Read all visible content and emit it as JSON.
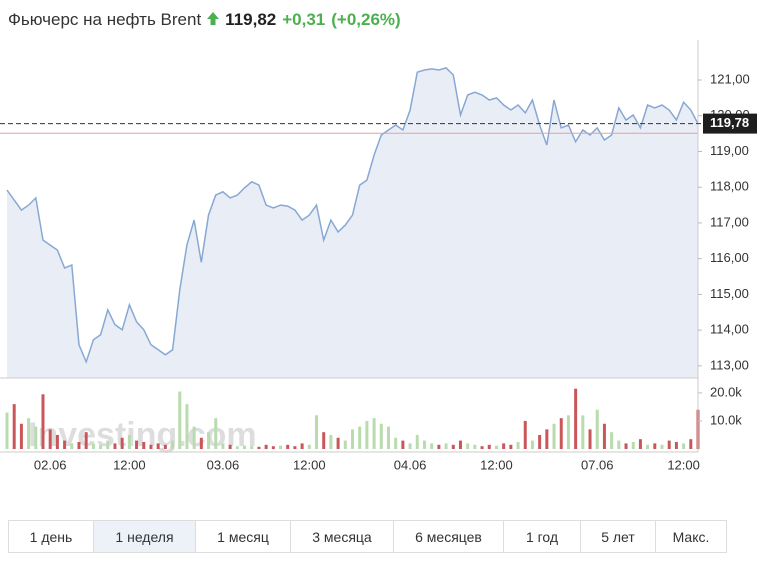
{
  "chart_data": {
    "type": "line",
    "title": "Фьючерс на нефть Brent",
    "price": "119,82",
    "change": "+0,31",
    "change_pct": "(+0,26%)",
    "watermark": "Investing.com",
    "categories": [
      null,
      null,
      null,
      null,
      null,
      null,
      "02.06",
      null,
      null,
      null,
      null,
      null,
      null,
      null,
      null,
      null,
      null,
      "12:00",
      null,
      null,
      null,
      null,
      null,
      null,
      null,
      null,
      null,
      null,
      null,
      null,
      "03.06",
      null,
      null,
      null,
      null,
      null,
      null,
      null,
      null,
      null,
      null,
      null,
      "12:00",
      null,
      null,
      null,
      null,
      null,
      null,
      null,
      null,
      null,
      null,
      null,
      null,
      null,
      "04.06",
      null,
      null,
      null,
      null,
      null,
      null,
      null,
      null,
      null,
      null,
      null,
      "12:00",
      null,
      null,
      null,
      null,
      null,
      null,
      null,
      null,
      null,
      null,
      null,
      null,
      null,
      "07.06",
      null,
      null,
      null,
      null,
      null,
      null,
      null,
      null,
      null,
      null,
      null,
      "12:00",
      null,
      null
    ],
    "series": [
      {
        "color": "#88a8d4",
        "fill": "#e9edf6",
        "values": [
          117.92,
          117.64,
          117.36,
          117.5,
          117.7,
          116.52,
          116.38,
          116.24,
          115.74,
          115.82,
          113.59,
          113.11,
          113.73,
          113.87,
          114.57,
          114.15,
          114.01,
          114.71,
          114.23,
          114.01,
          113.59,
          113.45,
          113.31,
          113.45,
          115.13,
          116.38,
          117.08,
          115.9,
          117.22,
          117.78,
          117.87,
          117.7,
          117.78,
          117.98,
          118.15,
          118.06,
          117.5,
          117.42,
          117.5,
          117.47,
          117.36,
          117.08,
          117.22,
          117.5,
          116.52,
          117.08,
          116.75,
          116.94,
          117.22,
          118.06,
          118.2,
          118.9,
          119.46,
          119.6,
          119.74,
          119.6,
          120.16,
          121.22,
          121.28,
          121.31,
          121.28,
          121.34,
          121.14,
          120.02,
          120.58,
          120.66,
          120.58,
          120.44,
          120.5,
          120.3,
          120.16,
          120.3,
          120.08,
          120.44,
          119.74,
          119.18,
          120.44,
          119.66,
          119.74,
          119.27,
          119.6,
          119.46,
          119.66,
          119.32,
          119.46,
          120.22,
          119.88,
          120.02,
          119.66,
          120.3,
          120.22,
          120.3,
          120.16,
          119.88,
          120.38,
          120.16,
          119.78
        ]
      }
    ],
    "ylim": [
      112.66,
      121.84
    ],
    "yticks": [
      {
        "value": 113,
        "label": "113,00"
      },
      {
        "value": 114,
        "label": "114,00"
      },
      {
        "value": 115,
        "label": "115,00"
      },
      {
        "value": 116,
        "label": "116,00"
      },
      {
        "value": 117,
        "label": "117,00"
      },
      {
        "value": 118,
        "label": "118,00"
      },
      {
        "value": 119,
        "label": "119,00"
      },
      {
        "value": 120,
        "label": "120,00"
      },
      {
        "value": 121,
        "label": "121,00"
      }
    ],
    "last_price": {
      "value": 119.78,
      "label": "119,78"
    },
    "reference_line": {
      "value": 119.51,
      "color": "#e8a0a0"
    },
    "volume": {
      "type": "bar",
      "up_color": "#b8dcae",
      "down_color": "#c9575a",
      "values": [
        13000,
        16000,
        9000,
        11000,
        8000,
        19500,
        7000,
        5000,
        3000,
        2000,
        2500,
        6000,
        2000,
        1500,
        3000,
        2000,
        4000,
        5000,
        3000,
        2500,
        1500,
        2000,
        1500,
        3000,
        20500,
        16000,
        8000,
        4000,
        6000,
        11000,
        2000,
        1500,
        1000,
        1200,
        1000,
        800,
        1500,
        1000,
        1200,
        1500,
        1000,
        2000,
        1500,
        12000,
        6000,
        5000,
        4000,
        3000,
        7000,
        8000,
        10000,
        11000,
        9000,
        8000,
        4000,
        3000,
        2000,
        5000,
        3000,
        2000,
        1500,
        2000,
        1500,
        3000,
        2000,
        1500,
        1000,
        1500,
        1200,
        2000,
        1500,
        2500,
        10000,
        3000,
        5000,
        7000,
        9000,
        11000,
        12000,
        21500,
        12000,
        7000,
        14000,
        9000,
        6000,
        3000,
        2000,
        2500,
        3500,
        1500,
        2000,
        1500,
        3000,
        2500,
        2000,
        3500,
        14000
      ],
      "ylim": [
        0,
        24600
      ],
      "yticks": [
        {
          "value": 10000,
          "label": "10.0k"
        },
        {
          "value": 20000,
          "label": "20.0k"
        }
      ]
    }
  },
  "range_buttons": [
    "1 день",
    "1 неделя",
    "1 месяц",
    "3 месяца",
    "6 месяцев",
    "1 год",
    "5 лет",
    "Макс."
  ],
  "active_range": "1 неделя"
}
